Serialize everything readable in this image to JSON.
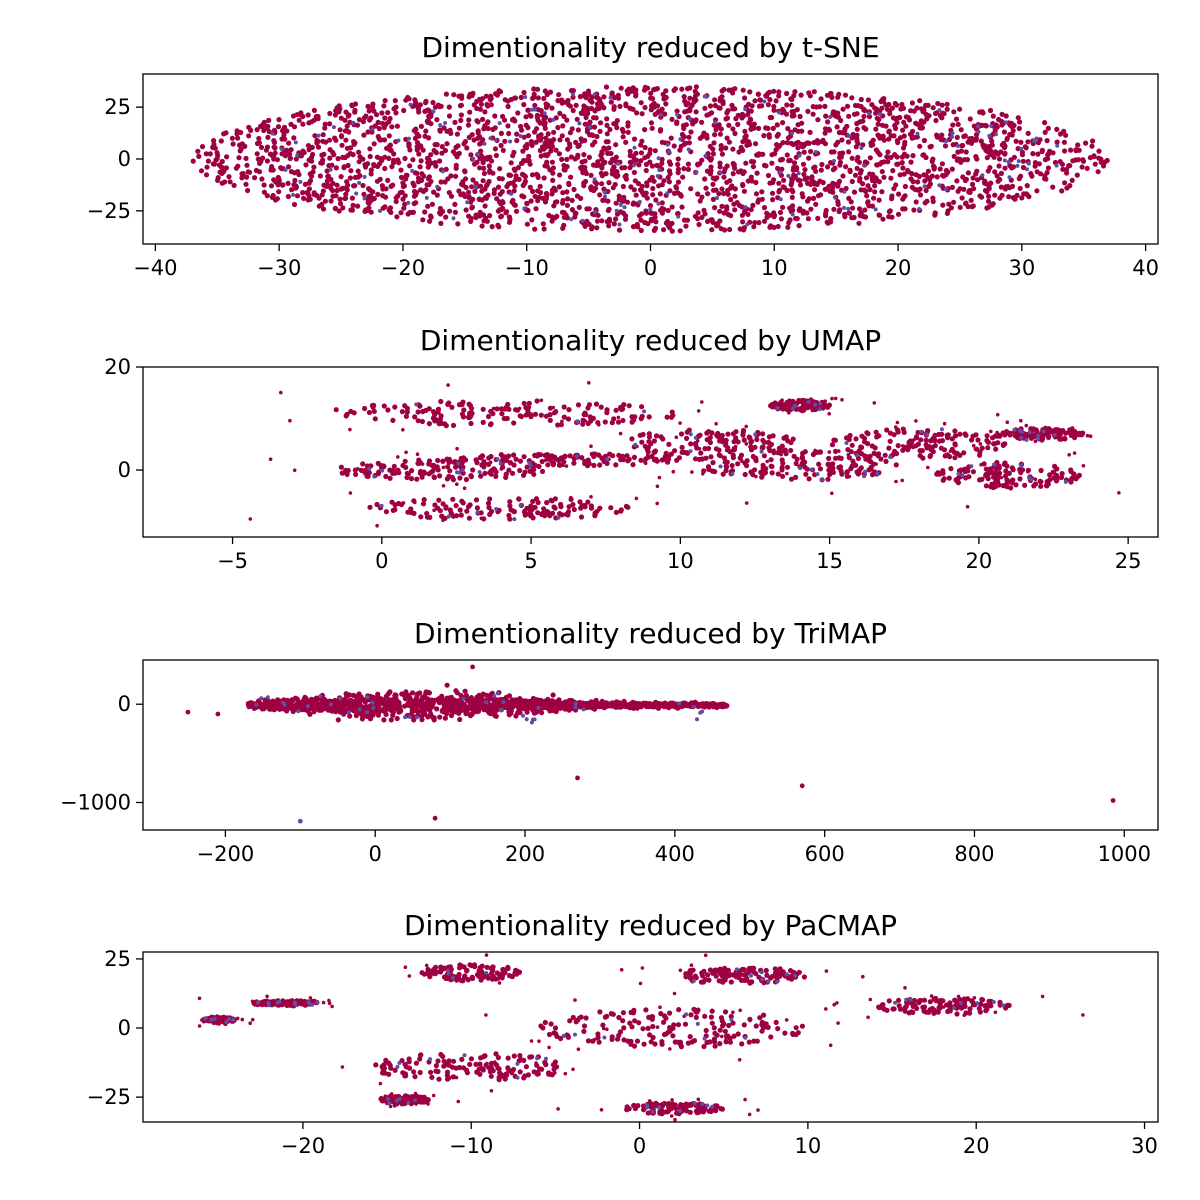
{
  "figure": {
    "background": "#ffffff",
    "colors": {
      "primary": "#9e0142",
      "secondary": "#5e4fa2"
    }
  },
  "chart_data": [
    {
      "type": "scatter",
      "title": "Dimentionality reduced by t-SNE",
      "xlabel": "",
      "ylabel": "",
      "xlim": [
        -41,
        41
      ],
      "ylim": [
        -41,
        41
      ],
      "xticks": [
        -40,
        -30,
        -20,
        -10,
        0,
        10,
        20,
        30,
        40
      ],
      "yticks": [
        -25,
        0,
        25
      ],
      "xtick_labels": [
        "−40",
        "−30",
        "−20",
        "−10",
        "0",
        "10",
        "20",
        "30",
        "40"
      ],
      "ytick_labels": [
        "−25",
        "0",
        "25"
      ],
      "grid": false,
      "legend": "none",
      "series": [
        {
          "color": "#9e0142",
          "shape": "ellipse",
          "center": [
            0,
            0
          ],
          "spread": [
            37,
            35
          ],
          "density": "high"
        },
        {
          "color": "#5e4fa2",
          "shape": "ellipse",
          "center": [
            0,
            0
          ],
          "spread": [
            35,
            33
          ],
          "density": "sparse"
        }
      ]
    },
    {
      "type": "scatter",
      "title": "Dimentionality reduced by UMAP",
      "xlabel": "",
      "ylabel": "",
      "xlim": [
        -8,
        26
      ],
      "ylim": [
        -13,
        20
      ],
      "xticks": [
        -5,
        0,
        5,
        10,
        15,
        20,
        25
      ],
      "yticks": [
        0,
        20
      ],
      "xtick_labels": [
        "−5",
        "0",
        "5",
        "10",
        "15",
        "20",
        "25"
      ],
      "ytick_labels": [
        "0",
        "20"
      ],
      "grid": false,
      "legend": "none",
      "series": [
        {
          "color": "#9e0142",
          "clusters": [
            {
              "cx": 4,
              "cy": 11,
              "rx": 6,
              "ry": 2.5
            },
            {
              "cx": 4,
              "cy": -7.5,
              "rx": 4.5,
              "ry": 2.2
            },
            {
              "cx": 2,
              "cy": 0,
              "rx": 3.5,
              "ry": 2
            },
            {
              "cx": 6,
              "cy": 2,
              "rx": 4,
              "ry": 1.2
            },
            {
              "cx": 11,
              "cy": 5,
              "rx": 3,
              "ry": 3
            },
            {
              "cx": 14,
              "cy": 1,
              "rx": 3.5,
              "ry": 3
            },
            {
              "cx": 18,
              "cy": 5,
              "rx": 3,
              "ry": 3
            },
            {
              "cx": 21,
              "cy": -1,
              "rx": 2.5,
              "ry": 2.5
            },
            {
              "cx": 22,
              "cy": 7,
              "rx": 1.5,
              "ry": 1.2
            },
            {
              "cx": 14,
              "cy": 12.5,
              "rx": 1,
              "ry": 1
            }
          ]
        },
        {
          "color": "#5e4fa2",
          "density": "sparse"
        }
      ]
    },
    {
      "type": "scatter",
      "title": "Dimentionality reduced by TriMAP",
      "xlabel": "",
      "ylabel": "",
      "xlim": [
        -310,
        1045
      ],
      "ylim": [
        -1280,
        450
      ],
      "xticks": [
        -200,
        0,
        200,
        400,
        600,
        800,
        1000
      ],
      "yticks": [
        -1000,
        0
      ],
      "xtick_labels": [
        "−200",
        "0",
        "200",
        "400",
        "600",
        "800",
        "1000"
      ],
      "ytick_labels": [
        "−1000",
        "0"
      ],
      "grid": false,
      "legend": "none",
      "series": [
        {
          "color": "#9e0142",
          "main_cluster": {
            "x_range": [
              -170,
              470
            ],
            "y_range": [
              -160,
              330
            ]
          },
          "outliers": [
            [
              -250,
              -80
            ],
            [
              -210,
              -100
            ],
            [
              270,
              -750
            ],
            [
              570,
              -830
            ],
            [
              985,
              -980
            ],
            [
              80,
              -1160
            ],
            [
              130,
              380
            ]
          ]
        },
        {
          "color": "#5e4fa2",
          "outliers": [
            [
              -100,
              -1190
            ]
          ]
        }
      ]
    },
    {
      "type": "scatter",
      "title": "Dimentionality reduced by PaCMAP",
      "xlabel": "",
      "ylabel": "",
      "xlim": [
        -29.5,
        30.8
      ],
      "ylim": [
        -34,
        27.5
      ],
      "xticks": [
        -20,
        -10,
        0,
        10,
        20,
        30
      ],
      "yticks": [
        -25,
        0,
        25
      ],
      "xtick_labels": [
        "−20",
        "−10",
        "0",
        "10",
        "20",
        "30"
      ],
      "ytick_labels": [
        "−25",
        "0",
        "25"
      ],
      "grid": false,
      "legend": "none",
      "series": [
        {
          "color": "#9e0142",
          "clusters": [
            {
              "cx": 2,
              "cy": 0,
              "rx": 8,
              "ry": 7
            },
            {
              "cx": -10,
              "cy": -14,
              "rx": 6,
              "ry": 5
            },
            {
              "cx": -10,
              "cy": 20,
              "rx": 3,
              "ry": 3
            },
            {
              "cx": 2,
              "cy": -29,
              "rx": 3,
              "ry": 2
            },
            {
              "cx": -14,
              "cy": -26,
              "rx": 1.5,
              "ry": 1.5
            },
            {
              "cx": 6,
              "cy": 19,
              "rx": 4,
              "ry": 3
            },
            {
              "cx": 18,
              "cy": 8,
              "rx": 4,
              "ry": 3
            },
            {
              "cx": -21,
              "cy": 9,
              "rx": 2,
              "ry": 1
            },
            {
              "cx": -25,
              "cy": 3,
              "rx": 1,
              "ry": 1
            }
          ]
        },
        {
          "color": "#5e4fa2",
          "density": "sparse"
        }
      ]
    }
  ]
}
